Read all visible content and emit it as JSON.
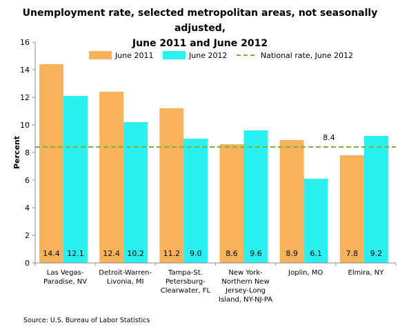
{
  "chart_data": {
    "type": "bar",
    "title_line1": "Unemployment rate, selected metropolitan areas, not seasonally adjusted,",
    "title_line2": "June 2011 and June 2012",
    "ylabel": "Percent",
    "xlabel": "",
    "ylim": [
      0,
      16
    ],
    "yticks": [
      0,
      2,
      4,
      6,
      8,
      10,
      12,
      14,
      16
    ],
    "grid": false,
    "legend_position": "top",
    "categories": [
      [
        "Las Vegas-",
        "Paradise, NV"
      ],
      [
        "Detroit-Warren-",
        "Livonia, MI"
      ],
      [
        "Tampa-St.",
        "Petersburg-",
        "Clearwater, FL"
      ],
      [
        "New York-",
        "Northern New",
        "Jersey-Long",
        "Island, NY-NJ-PA"
      ],
      [
        "Joplin, MO"
      ],
      [
        "Elmira, NY"
      ]
    ],
    "series": [
      {
        "name": "June 2011",
        "color": "#F9B25C",
        "values": [
          14.4,
          12.4,
          11.2,
          8.6,
          8.9,
          7.8
        ],
        "labels": [
          "14.4",
          "12.4",
          "11.2",
          "8.6",
          "8.9",
          "7.8"
        ]
      },
      {
        "name": "June 2012",
        "color": "#2AF0F0",
        "values": [
          12.1,
          10.2,
          9.0,
          9.6,
          6.1,
          9.2
        ],
        "labels": [
          "12.1",
          "10.2",
          "9.0",
          "9.6",
          "6.1",
          "9.2"
        ]
      }
    ],
    "reference_line": {
      "name": "National rate, June 2012",
      "value": 8.4,
      "label": "8.4",
      "color": "#7BAE3F"
    }
  },
  "source": "Source: U.S. Bureau of Labor Statistics"
}
